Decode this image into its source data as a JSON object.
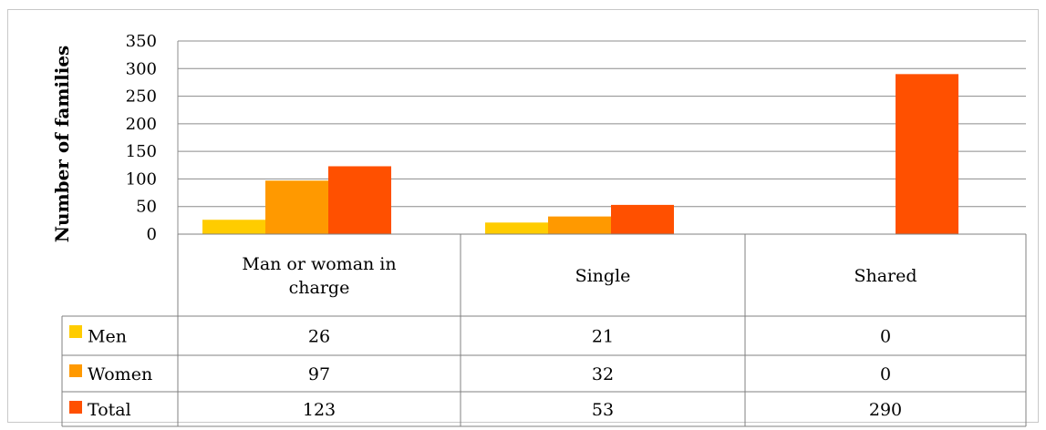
{
  "chart_data": {
    "type": "bar",
    "ylabel": "Number of families",
    "ylim": [
      0,
      350
    ],
    "yticks": [
      0,
      50,
      100,
      150,
      200,
      250,
      300,
      350
    ],
    "grid": true,
    "legend": "data-table",
    "categories": [
      [
        "Man or woman in",
        "charge"
      ],
      [
        "Single"
      ],
      [
        "Shared"
      ]
    ],
    "series": [
      {
        "name": "Men",
        "color": "#FFCC00",
        "values": [
          26,
          21,
          0
        ]
      },
      {
        "name": "Women",
        "color": "#FF9900",
        "values": [
          97,
          32,
          0
        ]
      },
      {
        "name": "Total",
        "color": "#FF5000",
        "values": [
          123,
          53,
          290
        ]
      }
    ]
  }
}
